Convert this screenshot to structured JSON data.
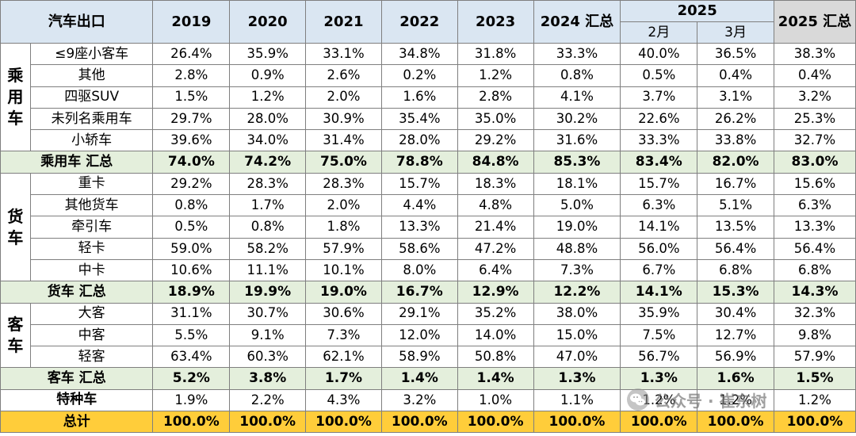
{
  "chart_data": {
    "type": "table",
    "header": {
      "corner": "汽车出口",
      "years": [
        "2019",
        "2020",
        "2021",
        "2022",
        "2023",
        "2024 汇总"
      ],
      "year_2025": "2025",
      "months": [
        "2月",
        "3月"
      ],
      "total_2025": "2025 汇总"
    },
    "groups": [
      {
        "name_chars": [
          "乘",
          "用",
          "车"
        ],
        "rows": [
          {
            "label": "≤9座小客车",
            "values": [
              "26.4%",
              "35.9%",
              "33.1%",
              "34.8%",
              "31.8%",
              "33.3%",
              "40.0%",
              "36.5%",
              "38.3%"
            ]
          },
          {
            "label": "其他",
            "values": [
              "2.8%",
              "0.9%",
              "2.6%",
              "0.2%",
              "1.2%",
              "0.8%",
              "0.5%",
              "0.4%",
              "0.4%"
            ]
          },
          {
            "label": "四驱SUV",
            "values": [
              "1.5%",
              "1.2%",
              "2.0%",
              "1.6%",
              "2.8%",
              "4.1%",
              "3.7%",
              "3.1%",
              "3.2%"
            ]
          },
          {
            "label": "未列名乘用车",
            "values": [
              "29.7%",
              "28.0%",
              "30.9%",
              "35.4%",
              "35.0%",
              "30.2%",
              "22.6%",
              "26.2%",
              "25.3%"
            ]
          },
          {
            "label": "小轿车",
            "values": [
              "39.6%",
              "34.0%",
              "31.4%",
              "28.0%",
              "29.2%",
              "31.6%",
              "33.3%",
              "33.8%",
              "32.7%"
            ]
          }
        ],
        "subtotal": {
          "label": "乘用车 汇总",
          "values": [
            "74.0%",
            "74.2%",
            "75.0%",
            "78.8%",
            "84.8%",
            "85.3%",
            "83.4%",
            "82.0%",
            "83.0%"
          ]
        }
      },
      {
        "name_chars": [
          "货",
          "车"
        ],
        "rows": [
          {
            "label": "重卡",
            "values": [
              "29.2%",
              "28.3%",
              "28.3%",
              "15.7%",
              "18.3%",
              "18.1%",
              "15.7%",
              "16.7%",
              "15.6%"
            ]
          },
          {
            "label": "其他货车",
            "values": [
              "0.8%",
              "1.7%",
              "2.0%",
              "4.4%",
              "4.8%",
              "5.0%",
              "6.3%",
              "5.1%",
              "6.3%"
            ]
          },
          {
            "label": "牵引车",
            "values": [
              "0.5%",
              "0.8%",
              "1.8%",
              "13.3%",
              "21.4%",
              "19.0%",
              "14.1%",
              "13.5%",
              "13.3%"
            ]
          },
          {
            "label": "轻卡",
            "values": [
              "59.0%",
              "58.2%",
              "57.9%",
              "58.6%",
              "47.2%",
              "48.8%",
              "56.0%",
              "56.4%",
              "56.4%"
            ]
          },
          {
            "label": "中卡",
            "values": [
              "10.6%",
              "11.1%",
              "10.1%",
              "8.0%",
              "6.4%",
              "7.3%",
              "6.7%",
              "6.8%",
              "6.8%"
            ]
          }
        ],
        "subtotal": {
          "label": "货车 汇总",
          "values": [
            "18.9%",
            "19.9%",
            "19.0%",
            "16.7%",
            "12.9%",
            "12.2%",
            "14.1%",
            "15.3%",
            "14.3%"
          ]
        }
      },
      {
        "name_chars": [
          "客",
          "车"
        ],
        "rows": [
          {
            "label": "大客",
            "values": [
              "31.1%",
              "30.7%",
              "30.6%",
              "29.1%",
              "35.2%",
              "38.0%",
              "35.9%",
              "30.4%",
              "32.3%"
            ]
          },
          {
            "label": "中客",
            "values": [
              "5.5%",
              "9.1%",
              "7.3%",
              "12.0%",
              "14.0%",
              "15.0%",
              "7.5%",
              "12.7%",
              "9.8%"
            ]
          },
          {
            "label": "轻客",
            "values": [
              "63.4%",
              "60.3%",
              "62.1%",
              "58.9%",
              "50.8%",
              "47.0%",
              "56.7%",
              "56.9%",
              "57.9%"
            ]
          }
        ],
        "subtotal": {
          "label": "客车 汇总",
          "values": [
            "5.2%",
            "3.8%",
            "1.7%",
            "1.4%",
            "1.4%",
            "1.3%",
            "1.3%",
            "1.6%",
            "1.5%"
          ]
        }
      }
    ],
    "special": {
      "label": "特种车",
      "values": [
        "1.9%",
        "2.2%",
        "4.3%",
        "3.2%",
        "1.0%",
        "1.1%",
        "1.2%",
        "1.2%",
        "1.2%"
      ]
    },
    "total": {
      "label": "总计",
      "values": [
        "100.0%",
        "100.0%",
        "100.0%",
        "100.0%",
        "100.0%",
        "100.0%",
        "100.0%",
        "100.0%",
        "100.0%"
      ]
    },
    "colors": {
      "header": "#dae6f2",
      "header_total": "#d9d9d9",
      "subtotal": "#e4efdc",
      "total": "#ffcd3a",
      "border": "#7f7f7f"
    }
  },
  "watermark": {
    "text": "公众号 · 崔东树",
    "icon": "wechat-logo-icon"
  }
}
